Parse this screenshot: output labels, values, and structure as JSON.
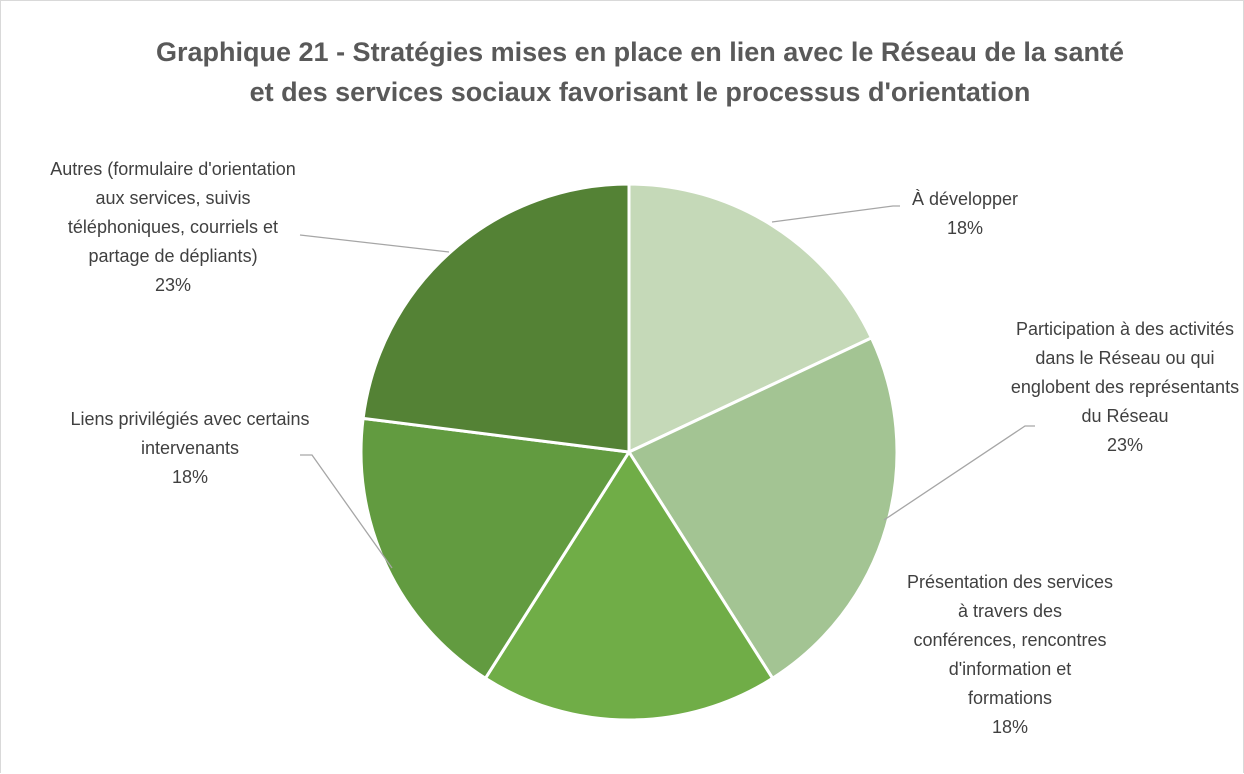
{
  "chart_data": {
    "type": "pie",
    "title": "Graphique 21 - Stratégies mises en place en lien avec le Réseau de la santé et des services sociaux favorisant le processus d'orientation",
    "categories": [
      "À développer",
      "Participation à des activités dans le Réseau ou qui englobent des représentants du Réseau",
      "Présentation des services à travers des conférences, rencontres d'information et formations",
      "Liens privilégiés avec certains intervenants",
      "Autres (formulaire d'orientation aux services, suivis téléphoniques, courriels et partage de dépliants)"
    ],
    "values": [
      18,
      23,
      18,
      18,
      23
    ],
    "value_labels": [
      "18%",
      "23%",
      "18%",
      "18%",
      "23%"
    ],
    "colors": [
      "#c5d9b8",
      "#a3c493",
      "#70ad47",
      "#629b40",
      "#548235"
    ]
  }
}
